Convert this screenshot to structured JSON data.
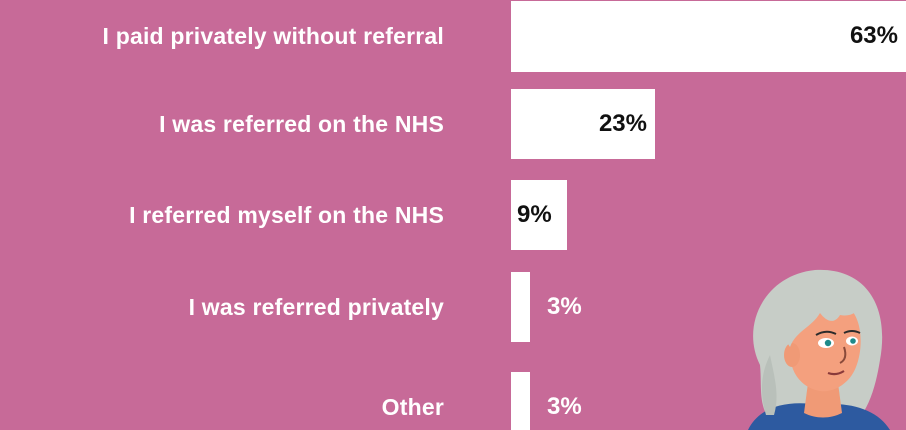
{
  "chart_data": {
    "type": "bar",
    "orientation": "horizontal",
    "categories": [
      "I paid privately without referral",
      "I was referred on the NHS",
      "I referred myself on the NHS",
      "I was referred privately",
      "Other"
    ],
    "values": [
      63,
      23,
      9,
      3,
      3
    ],
    "value_labels": [
      "63%",
      "23%",
      "9%",
      "3%",
      "3%"
    ],
    "unit": "%",
    "title": "",
    "xlabel": "",
    "ylabel": "",
    "xlim": [
      0,
      63
    ],
    "grid": false,
    "legend": "none"
  },
  "colors": {
    "background": "#c76a98",
    "bar": "#ffffff",
    "label_text": "#ffffff",
    "value_text_inside": "#111111",
    "value_text_outside": "#ffffff"
  },
  "illustration": {
    "icon": "woman-avatar-icon"
  }
}
